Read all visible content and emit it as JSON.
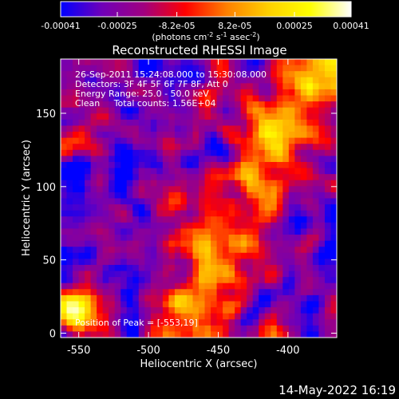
{
  "colorbar": {
    "ticks": [
      "-0.00041",
      "-0.00025",
      "-8.2e-05",
      "8.2e-05",
      "0.00025",
      "0.00041"
    ],
    "unit_prefix": "(photons cm",
    "unit_exp1": "-2",
    "unit_mid": " s",
    "unit_exp2": "-1",
    "unit_suffix": " asec",
    "unit_exp3": "-2",
    "unit_close": ")"
  },
  "footer": {
    "timestamp": "14-May-2022 16:19"
  },
  "chart_data": {
    "type": "heatmap",
    "title": "Reconstructed RHESSI Image",
    "xlabel": "Heliocentric X (arcsec)",
    "ylabel": "Heliocentric Y (arcsec)",
    "xlim": [
      -563,
      -365
    ],
    "ylim": [
      -3,
      187
    ],
    "xticks": [
      "-550",
      "-500",
      "-450",
      "-400"
    ],
    "yticks": [
      "0",
      "50",
      "100",
      "150"
    ],
    "color_range": [
      -0.00041,
      0.00041
    ],
    "colormap_stops": [
      "#0000ff",
      "#7000b8",
      "#a00080",
      "#ff0000",
      "#ff8000",
      "#ffd000",
      "#ffff00",
      "#ffffff"
    ],
    "annotations": [
      "26-Sep-2011 15:24:08.000 to 15:30:08.000",
      "Detectors: 3F 4F 5F 6F 7F 8F, Att 0",
      "Energy Range: 25.0 - 50.0 keV",
      "Clean     Total counts: 1.56E+04"
    ],
    "peak_label": "Position of Peak = [-553,19]",
    "peak_position": [
      -553,
      19
    ]
  }
}
